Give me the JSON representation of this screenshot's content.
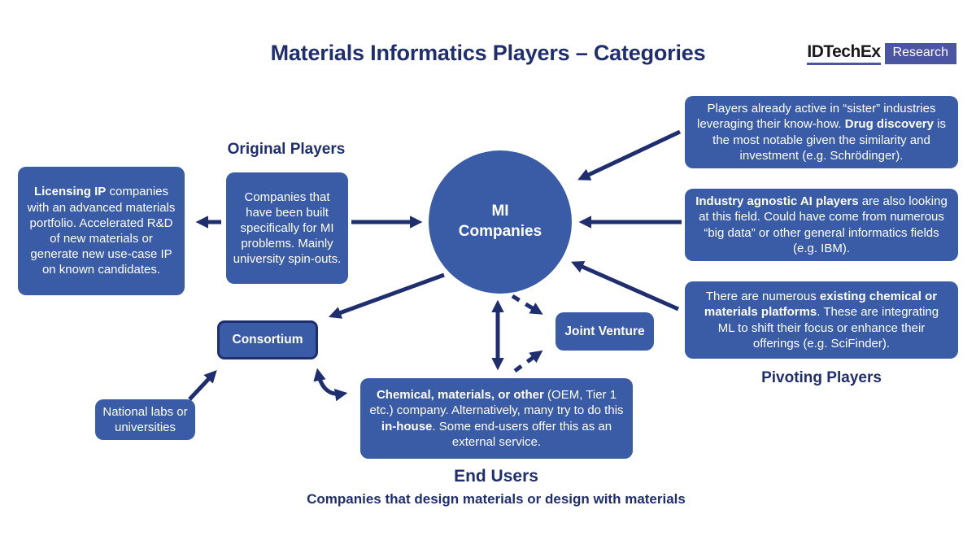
{
  "title": "Materials Informatics Players – Categories",
  "logo": {
    "brand": "IDTechEx",
    "product": "Research"
  },
  "colors": {
    "navy": "#1F2E6F",
    "box_blue": "#3A5CA6",
    "logo_blue": "#4B55A1",
    "text_on_blue": "#FFFFFF"
  },
  "center_circle": {
    "label": "MI Companies"
  },
  "headings": {
    "original_players": "Original Players",
    "pivoting_players": "Pivoting Players",
    "end_users": "End Users",
    "end_users_subtitle": "Companies that design materials or design with materials"
  },
  "boxes": {
    "licensing_ip": {
      "segments": [
        {
          "t": "Licensing IP",
          "b": true
        },
        {
          "t": " companies with an advanced materials portfolio. Accelerated R&D of new materials or generate new use-case IP on known candidates.",
          "b": false
        }
      ]
    },
    "original_players": {
      "segments": [
        {
          "t": "Companies that have been built specifically for MI problems. Mainly university spin-outs.",
          "b": false
        }
      ]
    },
    "sister_industries": {
      "segments": [
        {
          "t": "Players already active in “sister” industries leveraging their know-how. ",
          "b": false
        },
        {
          "t": "Drug discovery",
          "b": true
        },
        {
          "t": " is the most notable given the similarity and investment (e.g. Schrödinger).",
          "b": false
        }
      ]
    },
    "agnostic_ai": {
      "segments": [
        {
          "t": "Industry agnostic AI players",
          "b": true
        },
        {
          "t": " are also looking at this field. Could have come from numerous “big data” or other general informatics fields (e.g. IBM).",
          "b": false
        }
      ]
    },
    "existing_platforms": {
      "segments": [
        {
          "t": "There are numerous ",
          "b": false
        },
        {
          "t": "existing chemical or materials platforms",
          "b": true
        },
        {
          "t": ". These are integrating ML to shift their focus or enhance their offerings (e.g. SciFinder).",
          "b": false
        }
      ]
    },
    "end_users_box": {
      "segments": [
        {
          "t": "Chemical, materials, or other",
          "b": true
        },
        {
          "t": " (OEM, Tier 1 etc.) company. Alternatively, many try to do this ",
          "b": false
        },
        {
          "t": "in-house",
          "b": true
        },
        {
          "t": ". Some end-users offer this as an external service.",
          "b": false
        }
      ]
    },
    "consortium": {
      "label": "Consortium"
    },
    "joint_venture": {
      "label": "Joint Venture"
    },
    "national_labs": {
      "label": "National labs or universities"
    }
  }
}
